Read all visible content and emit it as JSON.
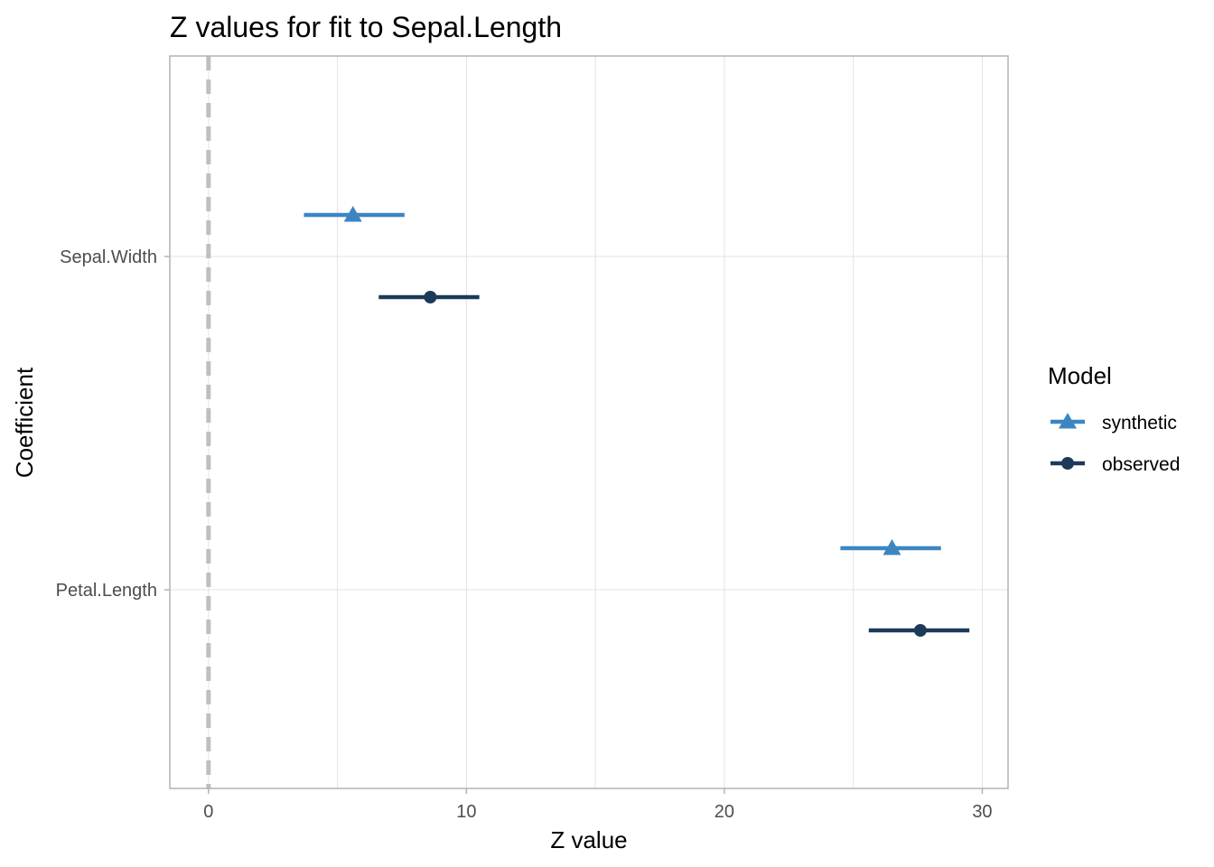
{
  "chart_data": {
    "type": "scatter",
    "title": "Z values for fit to Sepal.Length",
    "xlabel": "Z value",
    "ylabel": "Coefficient",
    "xlim": [
      -1.5,
      31.0
    ],
    "xticks": [
      0,
      10,
      20,
      30
    ],
    "categories": [
      "Sepal.Width",
      "Petal.Length"
    ],
    "reference_line": {
      "x": 0,
      "style": "dashed",
      "color": "#bfbfbf"
    },
    "grid": true,
    "legend": {
      "title": "Model",
      "position": "right"
    },
    "series": [
      {
        "name": "synthetic",
        "marker": "triangle",
        "color": "#3d85c1",
        "points": [
          {
            "category": "Sepal.Width",
            "z": 5.6,
            "lower": 3.7,
            "upper": 7.6
          },
          {
            "category": "Petal.Length",
            "z": 26.5,
            "lower": 24.5,
            "upper": 28.4
          }
        ]
      },
      {
        "name": "observed",
        "marker": "circle",
        "color": "#1c3a5a",
        "points": [
          {
            "category": "Sepal.Width",
            "z": 8.6,
            "lower": 6.6,
            "upper": 10.5
          },
          {
            "category": "Petal.Length",
            "z": 27.6,
            "lower": 25.6,
            "upper": 29.5
          }
        ]
      }
    ]
  }
}
